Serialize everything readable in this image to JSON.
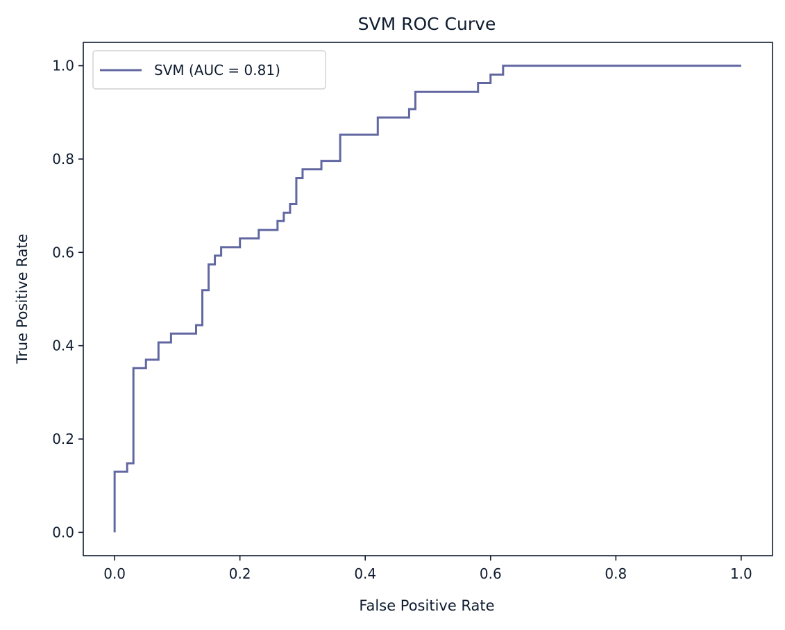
{
  "chart_data": {
    "type": "line",
    "title": "SVM ROC Curve",
    "xlabel": "False Positive Rate",
    "ylabel": "True Positive Rate",
    "xlim": [
      -0.05,
      1.05
    ],
    "ylim": [
      -0.05,
      1.05
    ],
    "x_ticks": [
      0.0,
      0.2,
      0.4,
      0.6,
      0.8,
      1.0
    ],
    "x_tick_labels": [
      "0.0",
      "0.2",
      "0.4",
      "0.6",
      "0.8",
      "1.0"
    ],
    "y_ticks": [
      0.0,
      0.2,
      0.4,
      0.6,
      0.8,
      1.0
    ],
    "y_tick_labels": [
      "0.0",
      "0.2",
      "0.4",
      "0.6",
      "0.8",
      "1.0"
    ],
    "grid": false,
    "legend": {
      "position": "top-left"
    },
    "series": [
      {
        "name": "SVM (AUC = 0.81)",
        "color": "#6167a1",
        "x": [
          0.0,
          0.0,
          0.02,
          0.02,
          0.03,
          0.03,
          0.05,
          0.05,
          0.07,
          0.07,
          0.09,
          0.09,
          0.13,
          0.13,
          0.14,
          0.14,
          0.15,
          0.15,
          0.16,
          0.16,
          0.17,
          0.17,
          0.2,
          0.2,
          0.23,
          0.23,
          0.26,
          0.26,
          0.27,
          0.27,
          0.28,
          0.28,
          0.29,
          0.29,
          0.3,
          0.3,
          0.33,
          0.33,
          0.36,
          0.36,
          0.42,
          0.42,
          0.47,
          0.47,
          0.48,
          0.48,
          0.58,
          0.58,
          0.6,
          0.6,
          0.62,
          0.62,
          1.0
        ],
        "y": [
          0.0,
          0.13,
          0.13,
          0.148,
          0.148,
          0.352,
          0.352,
          0.37,
          0.37,
          0.407,
          0.407,
          0.426,
          0.426,
          0.444,
          0.444,
          0.519,
          0.519,
          0.574,
          0.574,
          0.593,
          0.593,
          0.611,
          0.611,
          0.63,
          0.63,
          0.648,
          0.648,
          0.667,
          0.667,
          0.685,
          0.685,
          0.704,
          0.704,
          0.759,
          0.759,
          0.778,
          0.778,
          0.796,
          0.796,
          0.852,
          0.852,
          0.889,
          0.889,
          0.907,
          0.907,
          0.944,
          0.944,
          0.963,
          0.963,
          0.981,
          0.981,
          1.0,
          1.0
        ]
      }
    ]
  }
}
